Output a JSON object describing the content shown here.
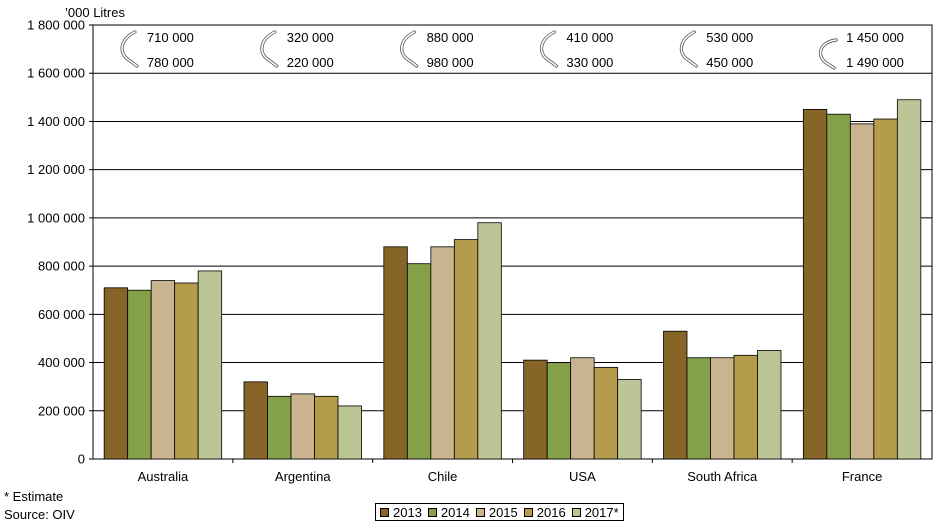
{
  "chart_data": {
    "type": "bar",
    "unit_label": "’000 Litres",
    "categories": [
      "Australia",
      "Argentina",
      "Chile",
      "USA",
      "South Africa",
      "France"
    ],
    "series": [
      {
        "name": "2013",
        "color": "#876529",
        "values": [
          710000,
          320000,
          880000,
          410000,
          530000,
          1450000
        ]
      },
      {
        "name": "2014",
        "color": "#84A048",
        "values": [
          700000,
          260000,
          810000,
          400000,
          420000,
          1430000
        ]
      },
      {
        "name": "2015",
        "color": "#C9B48F",
        "values": [
          740000,
          270000,
          880000,
          420000,
          420000,
          1390000
        ]
      },
      {
        "name": "2016",
        "color": "#B59B4C",
        "values": [
          730000,
          260000,
          910000,
          380000,
          430000,
          1410000
        ]
      },
      {
        "name": "2017*",
        "color": "#BCC595",
        "values": [
          780000,
          220000,
          980000,
          330000,
          450000,
          1490000
        ]
      }
    ],
    "ylim": [
      0,
      1800000
    ],
    "ytick_values": [
      0,
      200000,
      400000,
      600000,
      800000,
      1000000,
      1200000,
      1400000,
      1600000,
      1800000
    ],
    "ytick_labels": [
      "0",
      "200 000",
      "400 000",
      "600 000",
      "800 000",
      "1 000 000",
      "1 200 000",
      "1 400 000",
      "1 600 000",
      "1 800 000"
    ],
    "grid": true,
    "legend_position": "bottom",
    "annotations": [
      {
        "top": "710 000",
        "bottom": "780 000",
        "arrow": "down"
      },
      {
        "top": "320 000",
        "bottom": "220 000",
        "arrow": "down"
      },
      {
        "top": "880 000",
        "bottom": "980 000",
        "arrow": "down"
      },
      {
        "top": "410 000",
        "bottom": "330 000",
        "arrow": "down"
      },
      {
        "top": "530 000",
        "bottom": "450 000",
        "arrow": "down"
      },
      {
        "top": "1 450 000",
        "bottom": "1 490 000",
        "arrow": "up"
      }
    ]
  },
  "footnotes": {
    "estimate": "* Estimate",
    "source": "Source: OIV"
  }
}
